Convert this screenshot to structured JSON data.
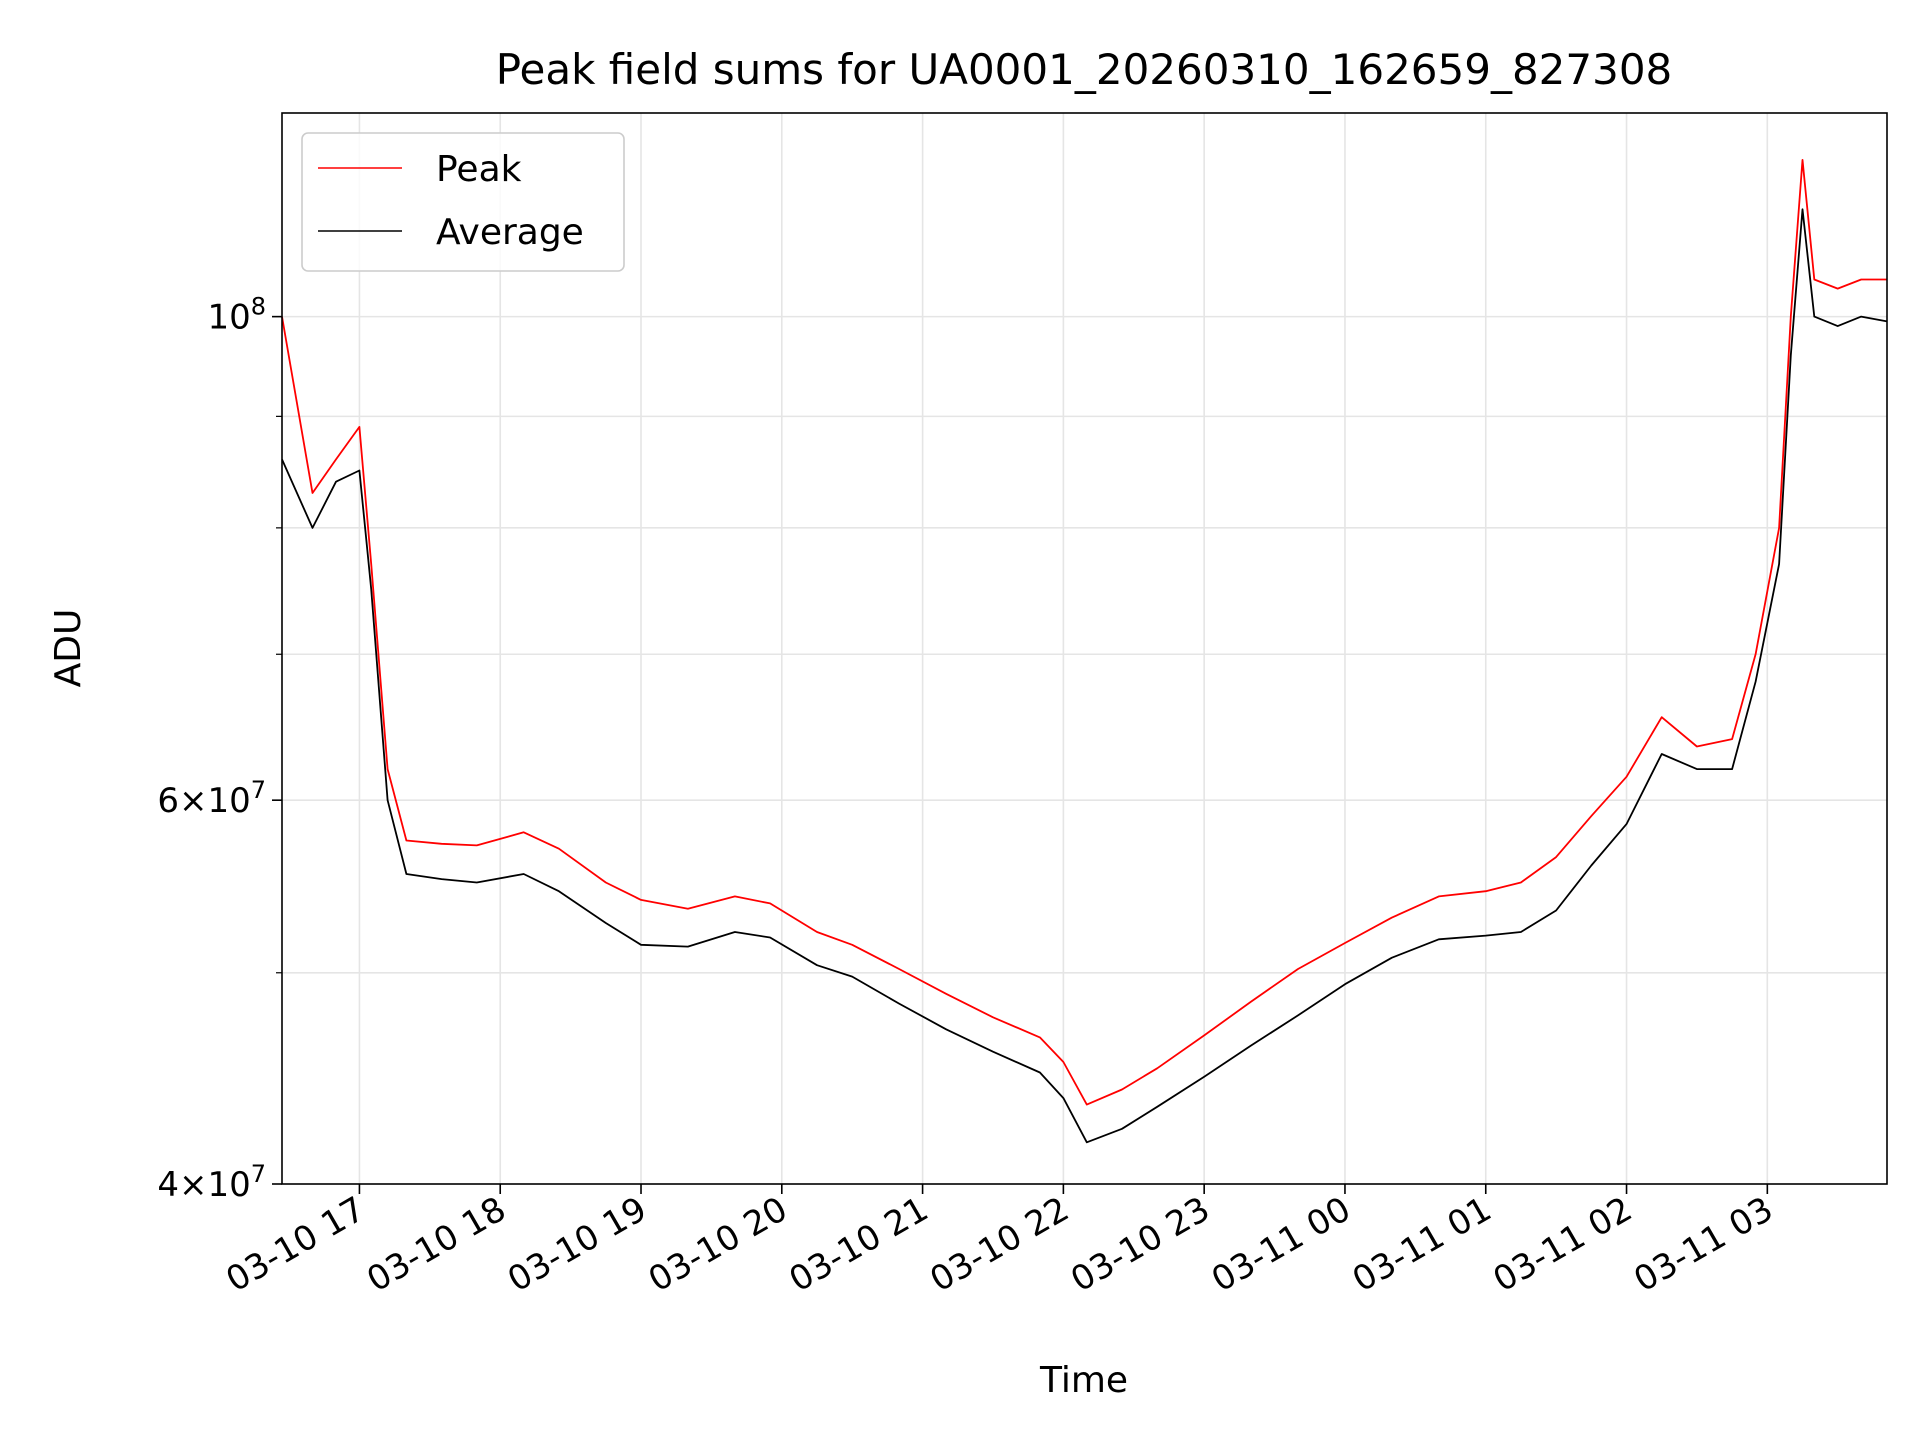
{
  "chart_data": {
    "type": "line",
    "title": "Peak field sums for UA0001_20260310_162659_827308",
    "xlabel": "Time",
    "ylabel": "ADU",
    "yscale": "log",
    "ylim": [
      40000000,
      124000000
    ],
    "xlim": [
      "2026-03-10 16:27",
      "2026-03-11 03:51"
    ],
    "grid": true,
    "legend_position": "upper left",
    "xticks": [
      {
        "value": "2026-03-10 17:00",
        "label": "03-10 17"
      },
      {
        "value": "2026-03-10 18:00",
        "label": "03-10 18"
      },
      {
        "value": "2026-03-10 19:00",
        "label": "03-10 19"
      },
      {
        "value": "2026-03-10 20:00",
        "label": "03-10 20"
      },
      {
        "value": "2026-03-10 21:00",
        "label": "03-10 21"
      },
      {
        "value": "2026-03-10 22:00",
        "label": "03-10 22"
      },
      {
        "value": "2026-03-10 23:00",
        "label": "03-10 23"
      },
      {
        "value": "2026-03-11 00:00",
        "label": "03-11 00"
      },
      {
        "value": "2026-03-11 01:00",
        "label": "03-11 01"
      },
      {
        "value": "2026-03-11 02:00",
        "label": "03-11 02"
      },
      {
        "value": "2026-03-11 03:00",
        "label": "03-11 03"
      }
    ],
    "yticks_major": [
      {
        "value": 40000000,
        "base": "4",
        "exp": "7"
      },
      {
        "value": 60000000,
        "base": "6",
        "exp": "7"
      },
      {
        "value": 100000000,
        "base": "",
        "exp": "8"
      }
    ],
    "yticks_minor": [
      50000000,
      70000000,
      80000000,
      90000000
    ],
    "x": [
      "2026-03-10 16:27",
      "2026-03-10 16:40",
      "2026-03-10 16:50",
      "2026-03-10 17:00",
      "2026-03-10 17:05",
      "2026-03-10 17:12",
      "2026-03-10 17:20",
      "2026-03-10 17:35",
      "2026-03-10 17:50",
      "2026-03-10 18:10",
      "2026-03-10 18:25",
      "2026-03-10 18:45",
      "2026-03-10 19:00",
      "2026-03-10 19:20",
      "2026-03-10 19:40",
      "2026-03-10 19:55",
      "2026-03-10 20:15",
      "2026-03-10 20:30",
      "2026-03-10 20:50",
      "2026-03-10 21:10",
      "2026-03-10 21:30",
      "2026-03-10 21:50",
      "2026-03-10 22:00",
      "2026-03-10 22:10",
      "2026-03-10 22:25",
      "2026-03-10 22:40",
      "2026-03-10 23:00",
      "2026-03-10 23:20",
      "2026-03-10 23:40",
      "2026-03-11 00:00",
      "2026-03-11 00:20",
      "2026-03-11 00:40",
      "2026-03-11 01:00",
      "2026-03-11 01:15",
      "2026-03-11 01:30",
      "2026-03-11 01:45",
      "2026-03-11 02:00",
      "2026-03-11 02:15",
      "2026-03-11 02:30",
      "2026-03-11 02:45",
      "2026-03-11 02:55",
      "2026-03-11 03:05",
      "2026-03-11 03:10",
      "2026-03-11 03:15",
      "2026-03-11 03:20",
      "2026-03-11 03:30",
      "2026-03-11 03:40",
      "2026-03-11 03:51"
    ],
    "series": [
      {
        "name": "Peak",
        "color": "#ff0000",
        "values": [
          100000000,
          83000000,
          86000000,
          89000000,
          77000000,
          62000000,
          57500000,
          57300000,
          57200000,
          58000000,
          57000000,
          55000000,
          54000000,
          53500000,
          54200000,
          53800000,
          52200000,
          51500000,
          50200000,
          48900000,
          47700000,
          46700000,
          45500000,
          43500000,
          44200000,
          45200000,
          46800000,
          48500000,
          50200000,
          51600000,
          53000000,
          54200000,
          54500000,
          55000000,
          56500000,
          59000000,
          61500000,
          65500000,
          63500000,
          64000000,
          70000000,
          80000000,
          100000000,
          118000000,
          104000000,
          103000000,
          104000000,
          104000000
        ]
      },
      {
        "name": "Average",
        "color": "#000000",
        "values": [
          86000000,
          80000000,
          84000000,
          85000000,
          75000000,
          60000000,
          55500000,
          55200000,
          55000000,
          55500000,
          54500000,
          52700000,
          51500000,
          51400000,
          52200000,
          51900000,
          50400000,
          49800000,
          48400000,
          47100000,
          46000000,
          45000000,
          43800000,
          41800000,
          42400000,
          43400000,
          44800000,
          46300000,
          47800000,
          49400000,
          50800000,
          51800000,
          52000000,
          52200000,
          53400000,
          56000000,
          58500000,
          63000000,
          62000000,
          62000000,
          68000000,
          77000000,
          96000000,
          112000000,
          100000000,
          99000000,
          100000000,
          99500000
        ]
      }
    ]
  }
}
